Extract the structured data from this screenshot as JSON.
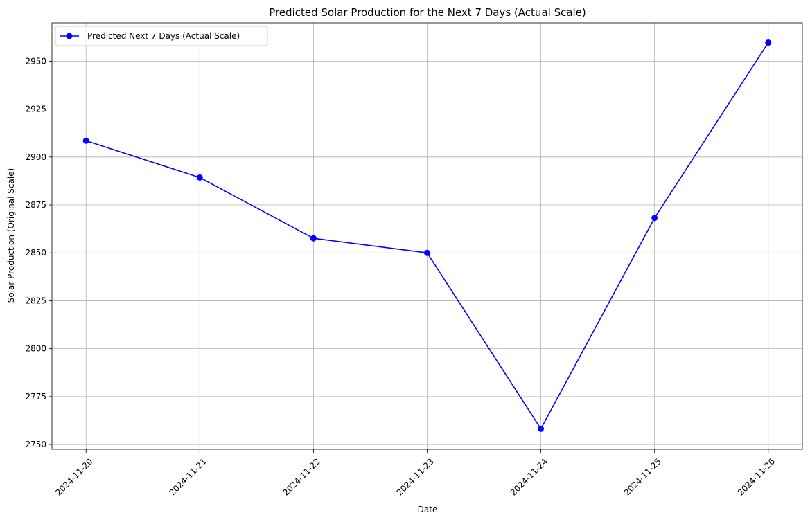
{
  "chart_data": {
    "type": "line",
    "title": "Predicted Solar Production for the Next 7 Days (Actual Scale)",
    "xlabel": "Date",
    "ylabel": "Solar Production (Original Scale)",
    "categories": [
      "2024-11-20",
      "2024-11-21",
      "2024-11-22",
      "2024-11-23",
      "2024-11-24",
      "2024-11-25",
      "2024-11-26"
    ],
    "yticks": [
      2750,
      2775,
      2800,
      2825,
      2850,
      2875,
      2900,
      2925,
      2950
    ],
    "ylim": [
      2747.5,
      2970
    ],
    "grid": true,
    "legend_position": "top-left",
    "series": [
      {
        "name": "Predicted Next 7 Days (Actual Scale)",
        "color": "#0000ff",
        "marker": "circle",
        "values": [
          2908.5,
          2889.3,
          2857.6,
          2850.0,
          2758.2,
          2868.2,
          2959.7
        ]
      }
    ]
  }
}
